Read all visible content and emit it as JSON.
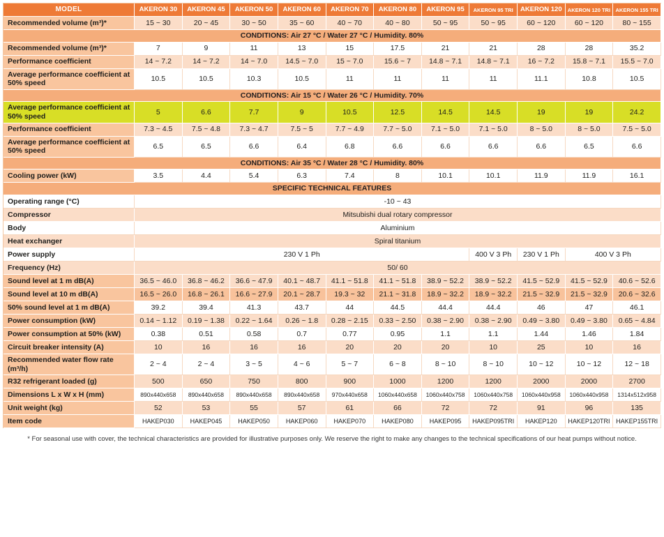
{
  "table": {
    "model_label": "MODEL",
    "columns": [
      "AKERON 30",
      "AKERON 45",
      "AKERON 50",
      "AKERON 60",
      "AKERON 70",
      "AKERON 80",
      "AKERON 95",
      "AKERON 95 TRI",
      "AKERON 120",
      "AKERON 120 TRI",
      "AKERON 155 TRI"
    ],
    "rows": [
      {
        "t": "data",
        "label": "Recommended volume (m³)*",
        "shade": "peach",
        "values": [
          "15 ~ 30",
          "20 ~ 45",
          "30 ~ 50",
          "35 ~ 60",
          "40 ~ 70",
          "40 ~ 80",
          "50 ~ 95",
          "50 ~ 95",
          "60 ~ 120",
          "60 ~ 120",
          "80 ~ 155"
        ]
      },
      {
        "t": "section",
        "label": "CONDITIONS: Air 27 °C / Water 27 °C / Humidity. 80%"
      },
      {
        "t": "data",
        "label": "Recommended volume (m³)*",
        "shade": "white",
        "values": [
          "7",
          "9",
          "11",
          "13",
          "15",
          "17.5",
          "21",
          "21",
          "28",
          "28",
          "35.2"
        ]
      },
      {
        "t": "data",
        "label": "Performance coefficient",
        "shade": "peach",
        "values": [
          "14 ~ 7.2",
          "14 ~ 7.2",
          "14 ~ 7.0",
          "14.5 ~ 7.0",
          "15 ~ 7.0",
          "15.6 ~ 7",
          "14.8 ~ 7.1",
          "14.8 ~ 7.1",
          "16 ~ 7.2",
          "15.8 ~ 7.1",
          "15.5 ~ 7.0"
        ]
      },
      {
        "t": "data",
        "label": "Average performance coefficient at 50% speed",
        "shade": "white",
        "values": [
          "10.5",
          "10.5",
          "10.3",
          "10.5",
          "11",
          "11",
          "11",
          "11",
          "11.1",
          "10.8",
          "10.5"
        ]
      },
      {
        "t": "section",
        "label": "CONDITIONS: Air 15 °C / Water 26 °C / Humidity. 70%"
      },
      {
        "t": "data",
        "label": "Average performance coefficient at 50% speed",
        "highlight": true,
        "shade": "hl",
        "values": [
          "5",
          "6.6",
          "7.7",
          "9",
          "10.5",
          "12.5",
          "14.5",
          "14.5",
          "19",
          "19",
          "24.2"
        ]
      },
      {
        "t": "data",
        "label": "Performance coefficient",
        "shade": "peach",
        "values": [
          "7.3 ~ 4.5",
          "7.5 ~ 4.8",
          "7.3 ~ 4.7",
          "7.5 ~ 5",
          "7.7 ~ 4.9",
          "7.7 ~ 5.0",
          "7.1 ~ 5.0",
          "7.1 ~ 5.0",
          "8 ~ 5.0",
          "8 ~ 5.0",
          "7.5 ~ 5.0"
        ]
      },
      {
        "t": "data",
        "label": "Average performance coefficient at 50% speed",
        "shade": "white",
        "values": [
          "6.5",
          "6.5",
          "6.6",
          "6.4",
          "6.8",
          "6.6",
          "6.6",
          "6.6",
          "6.6",
          "6.5",
          "6.6"
        ]
      },
      {
        "t": "section",
        "label": "CONDITIONS: Air 35 °C / Water 28 °C / Humidity. 80%"
      },
      {
        "t": "data",
        "label": "Cooling power (kW)",
        "shade": "white",
        "values": [
          "3.5",
          "4.4",
          "5.4",
          "6.3",
          "7.4",
          "8",
          "10.1",
          "10.1",
          "11.9",
          "11.9",
          "16.1"
        ]
      },
      {
        "t": "section",
        "label": "SPECIFIC TECHNICAL FEATURES"
      },
      {
        "t": "span",
        "label": "Operating range (°C)",
        "shade": "white",
        "value": "-10 ~ 43"
      },
      {
        "t": "span",
        "label": "Compressor",
        "shade": "peach",
        "value": "Mitsubishi dual rotary compressor"
      },
      {
        "t": "span",
        "label": "Body",
        "shade": "white",
        "value": "Aluminium"
      },
      {
        "t": "span",
        "label": "Heat exchanger",
        "shade": "peach",
        "value": "Spiral titanium"
      },
      {
        "t": "multi",
        "label": "Power supply",
        "shade": "white",
        "cells": [
          {
            "v": "230 V 1 Ph",
            "span": 7
          },
          {
            "v": "400 V 3 Ph",
            "span": 1
          },
          {
            "v": "230 V 1 Ph",
            "span": 1
          },
          {
            "v": "400 V 3 Ph",
            "span": 2
          }
        ]
      },
      {
        "t": "span",
        "label": "Frequency (Hz)",
        "shade": "peach",
        "value": "50/ 60"
      },
      {
        "t": "data",
        "label": "Sound level at 1 m dB(A)",
        "shade": "peach",
        "values": [
          "36.5 ~ 46.0",
          "36.8 ~ 46.2",
          "36.6 ~ 47.9",
          "40.1 ~ 48.7",
          "41.1 ~ 51.8",
          "41.1 ~ 51.8",
          "38.9 ~ 52.2",
          "38.9 ~ 52.2",
          "41.5 ~ 52.9",
          "41.5 ~ 52.9",
          "40.6 ~ 52.6"
        ]
      },
      {
        "t": "data",
        "label": "Sound level at 10 m dB(A)",
        "shade": "salmon",
        "values": [
          "16.5 ~ 26.0",
          "16.8 ~ 26.1",
          "16.6 ~ 27.9",
          "20.1 ~ 28.7",
          "19.3 ~ 32",
          "21.1 ~ 31.8",
          "18.9 ~ 32.2",
          "18.9 ~ 32.2",
          "21.5 ~ 32.9",
          "21.5 ~ 32.9",
          "20.6 ~ 32.6"
        ]
      },
      {
        "t": "data",
        "label": "50% sound level at 1 m dB(A)",
        "shade": "white",
        "values": [
          "39.2",
          "39.4",
          "41.3",
          "43.7",
          "44",
          "44.5",
          "44.4",
          "44.4",
          "46",
          "47",
          "46.1"
        ]
      },
      {
        "t": "data",
        "label": "Power consumption (kW)",
        "shade": "peach",
        "values": [
          "0.14 ~ 1.12",
          "0.19 ~ 1.38",
          "0.22 ~ 1.64",
          "0.26 ~ 1.8",
          "0.28 ~ 2.15",
          "0.33 ~ 2.50",
          "0.38 ~ 2.90",
          "0.38 ~ 2.90",
          "0.49 ~ 3.80",
          "0.49 ~ 3.80",
          "0.65 ~ 4.84"
        ]
      },
      {
        "t": "data",
        "label": "Power consumption at 50% (kW)",
        "shade": "white",
        "values": [
          "0.38",
          "0.51",
          "0.58",
          "0.7",
          "0.77",
          "0.95",
          "1.1",
          "1.1",
          "1.44",
          "1.46",
          "1.84"
        ]
      },
      {
        "t": "data",
        "label": "Circuit breaker intensity (A)",
        "shade": "peach",
        "values": [
          "10",
          "16",
          "16",
          "16",
          "20",
          "20",
          "20",
          "10",
          "25",
          "10",
          "16"
        ]
      },
      {
        "t": "data",
        "label": "Recommended water flow rate (m³/h)",
        "shade": "white",
        "values": [
          "2 ~ 4",
          "2 ~ 4",
          "3 ~ 5",
          "4 ~ 6",
          "5 ~ 7",
          "6 ~ 8",
          "8 ~ 10",
          "8 ~ 10",
          "10 ~ 12",
          "10 ~ 12",
          "12 ~ 18"
        ]
      },
      {
        "t": "data",
        "label": "R32 refrigerant loaded (g)",
        "shade": "peach",
        "values": [
          "500",
          "650",
          "750",
          "800",
          "900",
          "1000",
          "1200",
          "1200",
          "2000",
          "2000",
          "2700"
        ]
      },
      {
        "t": "data",
        "label": "Dimensions L x W x H (mm)",
        "shade": "white",
        "values": [
          "890x440x658",
          "890x440x658",
          "890x440x658",
          "890x440x658",
          "970x440x658",
          "1060x440x658",
          "1060x440x758",
          "1060x440x758",
          "1060x440x958",
          "1060x440x958",
          "1314x512x958"
        ]
      },
      {
        "t": "data",
        "label": "Unit weight (kg)",
        "shade": "peach",
        "values": [
          "52",
          "53",
          "55",
          "57",
          "61",
          "66",
          "72",
          "72",
          "91",
          "96",
          "135"
        ]
      },
      {
        "t": "data",
        "label": "Item code",
        "shade": "white",
        "values": [
          "HAKEP030",
          "HAKEP045",
          "HAKEP050",
          "HAKEP060",
          "HAKEP070",
          "HAKEP080",
          "HAKEP095",
          "HAKEP095TRI",
          "HAKEP120",
          "HAKEP120TRI",
          "HAKEP155TRI"
        ]
      }
    ]
  },
  "colors": {
    "header_orange": "#ee7a36",
    "section_salmon": "#f5ad7b",
    "label_peach": "#f9c59e",
    "row_peach": "#fbddc8",
    "row_salmon": "#f8c29b",
    "highlight_yellow": "#d8de26"
  },
  "footnote": "* For seasonal use with cover, the technical characteristics are provided for illustrative purposes only. We reserve the right to make any changes to the technical specifications of our heat pumps without notice."
}
